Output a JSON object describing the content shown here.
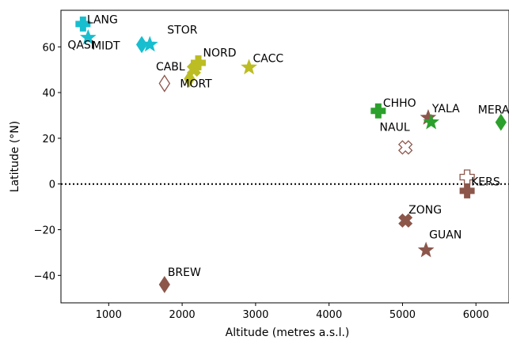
{
  "chart_data": {
    "type": "scatter",
    "xlabel": "Altitude (metres a.s.l.)",
    "ylabel": "Latitude (°N)",
    "xlim": [
      350,
      6450
    ],
    "ylim": [
      -52,
      76
    ],
    "xticks": [
      1000,
      2000,
      3000,
      4000,
      5000,
      6000
    ],
    "yticks": [
      -40,
      -20,
      0,
      20,
      40,
      60
    ],
    "xtick_labels": [
      "1000",
      "2000",
      "3000",
      "4000",
      "5000",
      "6000"
    ],
    "ytick_labels": [
      "−40",
      "−20",
      "0",
      "20",
      "40",
      "60"
    ],
    "zero_reference_line": {
      "y": 0,
      "style": "dotted"
    },
    "grid": false,
    "colors": {
      "cyan": "#17becf",
      "olive": "#bcbd22",
      "green": "#2ca02c",
      "brown": "#8c564b"
    },
    "points": [
      {
        "label": "LANG",
        "x": 650,
        "y": 70,
        "marker": "plus",
        "color": "cyan",
        "filled": true
      },
      {
        "label": "QASI",
        "x": 720,
        "y": 64,
        "marker": "star",
        "color": "cyan",
        "filled": true
      },
      {
        "label": "MIDT",
        "x": 1450,
        "y": 61,
        "marker": "diamond",
        "color": "cyan",
        "filled": true
      },
      {
        "label": "STOR",
        "x": 1560,
        "y": 61,
        "marker": "star",
        "color": "cyan",
        "filled": true
      },
      {
        "label": "",
        "x": 1760,
        "y": 44,
        "marker": "diamond",
        "color": "brown",
        "filled": false
      },
      {
        "label": "CABL",
        "x": 2160,
        "y": 50,
        "marker": "cross",
        "color": "olive",
        "filled": true
      },
      {
        "label": "NORD",
        "x": 2220,
        "y": 53,
        "marker": "plus",
        "color": "olive",
        "filled": true
      },
      {
        "label": "MORT",
        "x": 2100,
        "y": 46,
        "marker": "diamond",
        "color": "olive",
        "filled": true
      },
      {
        "label": "CACC",
        "x": 2910,
        "y": 51,
        "marker": "star",
        "color": "olive",
        "filled": true
      },
      {
        "label": "CHHO",
        "x": 4670,
        "y": 32,
        "marker": "plus",
        "color": "green",
        "filled": true
      },
      {
        "label": "YALA",
        "x": 5350,
        "y": 29,
        "marker": "star",
        "color": "brown",
        "filled": true
      },
      {
        "label": "NAUL",
        "x": 5390,
        "y": 27,
        "marker": "star",
        "color": "green",
        "filled": true
      },
      {
        "label": "",
        "x": 5040,
        "y": 16,
        "marker": "cross",
        "color": "brown",
        "filled": false
      },
      {
        "label": "MERA",
        "x": 6340,
        "y": 27,
        "marker": "diamond",
        "color": "green",
        "filled": true
      },
      {
        "label": "",
        "x": 5880,
        "y": 3,
        "marker": "plus",
        "color": "brown",
        "filled": false
      },
      {
        "label": "KERS",
        "x": 5880,
        "y": -3,
        "marker": "plus",
        "color": "brown",
        "filled": true
      },
      {
        "label": "ZONG",
        "x": 5040,
        "y": -16,
        "marker": "cross",
        "color": "brown",
        "filled": true
      },
      {
        "label": "GUAN",
        "x": 5320,
        "y": -29,
        "marker": "star",
        "color": "brown",
        "filled": true
      },
      {
        "label": "BREW",
        "x": 1760,
        "y": -44,
        "marker": "diamond",
        "color": "brown",
        "filled": true
      }
    ]
  }
}
